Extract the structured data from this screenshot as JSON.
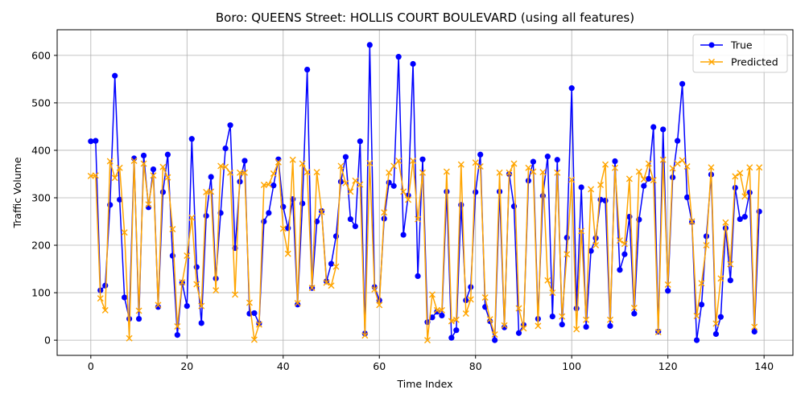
{
  "chart_data": {
    "type": "line",
    "title": "Boro: QUEENS Street: HOLLIS COURT BOULEVARD (using all features)",
    "xlabel": "Time Index",
    "ylabel": "Traffic Volume",
    "xlim": [
      -7,
      146
    ],
    "ylim": [
      -32,
      654
    ],
    "xticks": [
      0,
      20,
      40,
      60,
      80,
      100,
      120,
      140
    ],
    "yticks": [
      0,
      100,
      200,
      300,
      400,
      500,
      600
    ],
    "grid": true,
    "legend_position": "top-right",
    "x_start": 0,
    "series": [
      {
        "name": "True",
        "color": "#0000ff",
        "marker": "circle",
        "values": [
          419,
          420,
          105,
          115,
          285,
          557,
          296,
          90,
          45,
          383,
          45,
          389,
          280,
          360,
          70,
          312,
          391,
          178,
          11,
          121,
          72,
          424,
          154,
          36,
          262,
          344,
          130,
          268,
          404,
          453,
          194,
          334,
          378,
          56,
          57,
          35,
          250,
          268,
          326,
          381,
          281,
          236,
          297,
          75,
          288,
          570,
          110,
          250,
          272,
          124,
          161,
          219,
          334,
          386,
          255,
          240,
          419,
          14,
          622,
          112,
          84,
          256,
          332,
          325,
          597,
          222,
          305,
          582,
          135,
          381,
          38,
          48,
          60,
          52,
          313,
          5,
          21,
          285,
          84,
          112,
          312,
          391,
          70,
          40,
          0,
          313,
          27,
          350,
          282,
          15,
          32,
          336,
          376,
          45,
          304,
          387,
          50,
          380,
          33,
          216,
          531,
          67,
          322,
          28,
          188,
          215,
          296,
          294,
          30,
          377,
          148,
          181,
          260,
          56,
          254,
          325,
          340,
          449,
          18,
          444,
          104,
          343,
          420,
          540,
          301,
          249,
          0,
          75,
          219,
          349,
          13,
          49,
          236,
          126,
          321,
          255,
          260,
          311,
          18,
          271
        ]
      },
      {
        "name": "Predicted",
        "color": "#ffa500",
        "marker": "x",
        "values": [
          346,
          347,
          88,
          63,
          377,
          342,
          363,
          227,
          4,
          378,
          62,
          372,
          286,
          347,
          74,
          365,
          343,
          234,
          29,
          122,
          178,
          258,
          118,
          72,
          312,
          313,
          105,
          367,
          365,
          353,
          96,
          353,
          353,
          79,
          1,
          33,
          327,
          328,
          351,
          375,
          235,
          182,
          380,
          78,
          372,
          354,
          110,
          354,
          270,
          121,
          115,
          155,
          367,
          331,
          313,
          336,
          328,
          10,
          373,
          107,
          74,
          269,
          353,
          367,
          378,
          313,
          296,
          378,
          255,
          353,
          0,
          96,
          63,
          63,
          355,
          40,
          43,
          370,
          56,
          86,
          374,
          366,
          90,
          44,
          12,
          353,
          31,
          353,
          372,
          67,
          25,
          363,
          355,
          30,
          354,
          126,
          100,
          353,
          50,
          181,
          338,
          23,
          230,
          43,
          318,
          200,
          327,
          370,
          43,
          363,
          210,
          203,
          340,
          68,
          355,
          339,
          372,
          337,
          17,
          380,
          117,
          362,
          372,
          379,
          366,
          250,
          51,
          120,
          200,
          364,
          35,
          130,
          248,
          160,
          345,
          352,
          303,
          364,
          28,
          364
        ]
      }
    ]
  }
}
